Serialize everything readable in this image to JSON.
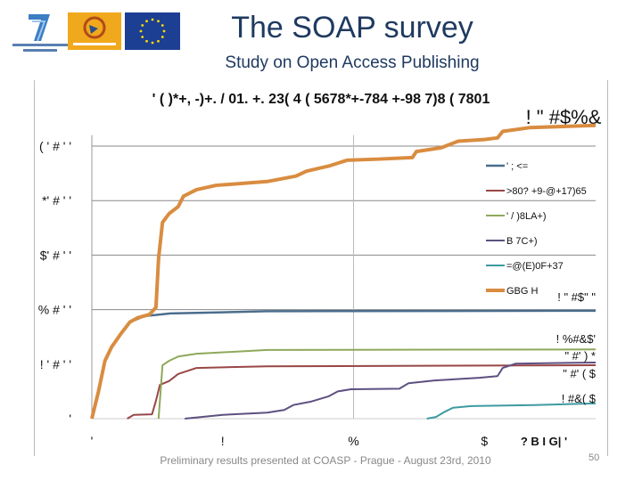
{
  "slide": {
    "title": "The SOAP survey",
    "subtitle": "Study on Open Access Publishing",
    "footer": "Preliminary results presented at COASP - Prague - August 23rd, 2010",
    "page_number": "50"
  },
  "logos": [
    {
      "name": "fp7-logo",
      "text": "SEVENTH FRAMEWORK PROGRAMME"
    },
    {
      "name": "science-in-society-logo",
      "text": "SCIENCE IN SOCIETY"
    },
    {
      "name": "eu-flag-logo",
      "text": ""
    }
  ],
  "chart_data": {
    "type": "line",
    "title": "' ( )*+, -)+. / 01. +. 23( 4 ( 5678*+-784 +-98 7)8 ( 7801",
    "corner_label": "! \" #$%&",
    "xlabel": "",
    "ylabel": "",
    "x_ticks": [
      {
        "v": 0,
        "label": "'"
      },
      {
        "v": 1,
        "label": "!"
      },
      {
        "v": 2,
        "label": "%"
      },
      {
        "v": 3,
        "label": "$"
      }
    ],
    "x_extra_label": "? B I G| '",
    "y_ticks": [
      {
        "v": 0,
        "label": "'"
      },
      {
        "v": 1,
        "label": "! ' # ' '"
      },
      {
        "v": 2,
        "label": "% # ' '"
      },
      {
        "v": 3,
        "label": "$' # ' '"
      },
      {
        "v": 4,
        "label": "*' # ' '"
      },
      {
        "v": 5,
        "label": "( ' # ' '"
      }
    ],
    "xlim": [
      0,
      3.85
    ],
    "ylim": [
      0,
      5.4
    ],
    "grid": "horizontal major lines plus vertical line at x=2",
    "legend": "right",
    "series": [
      {
        "name": "' ; <=",
        "color": "#4a6d8c",
        "width": 2.5,
        "end_label": "! \" #$\" \"",
        "points": [
          [
            0,
            0
          ],
          [
            0.05,
            0.5
          ],
          [
            0.1,
            1.05
          ],
          [
            0.15,
            1.3
          ],
          [
            0.22,
            1.55
          ],
          [
            0.29,
            1.77
          ],
          [
            0.4,
            1.88
          ],
          [
            0.6,
            1.93
          ],
          [
            1.34,
            1.97
          ],
          [
            3.85,
            1.98
          ]
        ]
      },
      {
        "name": ">80? +9-@+17)65",
        "color": "#984646",
        "width": 2,
        "end_label": "\" #' ) *",
        "points": [
          [
            0.27,
            0
          ],
          [
            0.32,
            0.07
          ],
          [
            0.46,
            0.08
          ],
          [
            0.49,
            0.33
          ],
          [
            0.52,
            0.62
          ],
          [
            0.59,
            0.69
          ],
          [
            0.66,
            0.82
          ],
          [
            0.8,
            0.93
          ],
          [
            1.34,
            0.96
          ],
          [
            3.85,
            0.98
          ]
        ]
      },
      {
        "name": "' / )8LA+)",
        "color": "#8fa85a",
        "width": 2,
        "end_label": "! %#&$'",
        "points": [
          [
            0.51,
            0
          ],
          [
            0.54,
            0.98
          ],
          [
            0.59,
            1.06
          ],
          [
            0.66,
            1.14
          ],
          [
            0.8,
            1.19
          ],
          [
            1.34,
            1.26
          ],
          [
            3.85,
            1.27
          ]
        ]
      },
      {
        "name": "B 7C+)",
        "color": "#5d5080",
        "width": 2,
        "end_label": "\" #' ( $",
        "points": [
          [
            0.71,
            0
          ],
          [
            1,
            0.07
          ],
          [
            1.34,
            0.11
          ],
          [
            1.47,
            0.16
          ],
          [
            1.54,
            0.25
          ],
          [
            1.67,
            0.31
          ],
          [
            1.81,
            0.41
          ],
          [
            1.88,
            0.5
          ],
          [
            1.98,
            0.54
          ],
          [
            2.35,
            0.55
          ],
          [
            2.42,
            0.65
          ],
          [
            2.62,
            0.7
          ],
          [
            2.96,
            0.75
          ],
          [
            3.1,
            0.78
          ],
          [
            3.14,
            0.93
          ],
          [
            3.24,
            1.01
          ],
          [
            3.85,
            1.03
          ]
        ]
      },
      {
        "name": "=@(E)0F+37",
        "color": "#3d9aa0",
        "width": 2,
        "end_label": "! #&( $",
        "points": [
          [
            2.56,
            0
          ],
          [
            2.63,
            0.03
          ],
          [
            2.7,
            0.13
          ],
          [
            2.76,
            0.2
          ],
          [
            2.9,
            0.23
          ],
          [
            3.38,
            0.25
          ],
          [
            3.85,
            0.28
          ]
        ]
      },
      {
        "name": "GBG H",
        "color": "#d98c40",
        "width": 4,
        "end_label": "",
        "points": [
          [
            0,
            0
          ],
          [
            0.05,
            0.49
          ],
          [
            0.1,
            1.06
          ],
          [
            0.15,
            1.31
          ],
          [
            0.22,
            1.55
          ],
          [
            0.29,
            1.77
          ],
          [
            0.35,
            1.85
          ],
          [
            0.44,
            1.91
          ],
          [
            0.49,
            2.04
          ],
          [
            0.51,
            2.94
          ],
          [
            0.54,
            3.6
          ],
          [
            0.59,
            3.76
          ],
          [
            0.66,
            3.89
          ],
          [
            0.7,
            4.08
          ],
          [
            0.8,
            4.2
          ],
          [
            0.95,
            4.28
          ],
          [
            1.34,
            4.35
          ],
          [
            1.56,
            4.45
          ],
          [
            1.64,
            4.54
          ],
          [
            1.82,
            4.64
          ],
          [
            1.95,
            4.74
          ],
          [
            2.18,
            4.76
          ],
          [
            2.45,
            4.79
          ],
          [
            2.48,
            4.9
          ],
          [
            2.67,
            4.97
          ],
          [
            2.8,
            5.09
          ],
          [
            3.0,
            5.12
          ],
          [
            3.1,
            5.15
          ],
          [
            3.14,
            5.27
          ],
          [
            3.35,
            5.34
          ],
          [
            3.85,
            5.38
          ]
        ]
      }
    ]
  }
}
